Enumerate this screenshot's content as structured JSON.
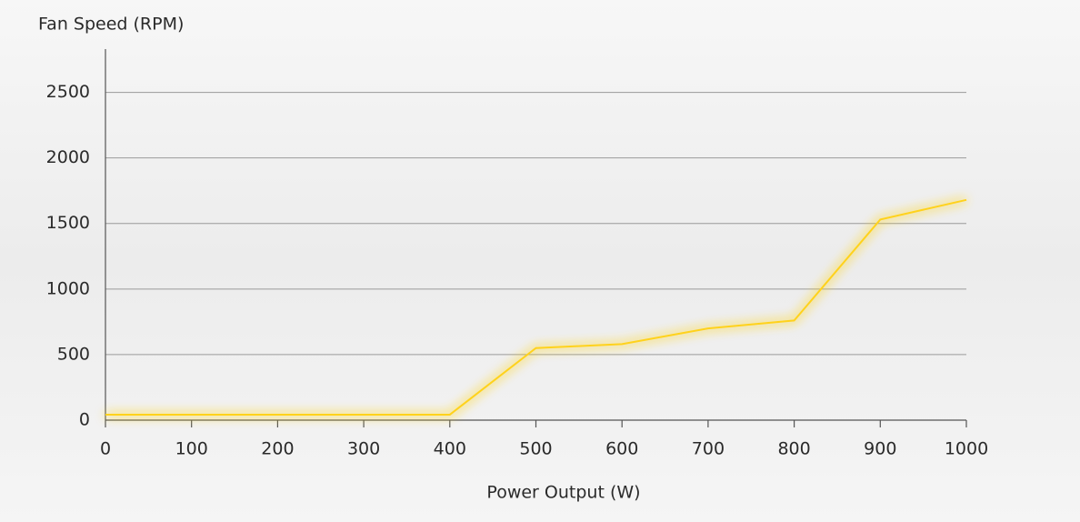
{
  "chart_data": {
    "type": "line",
    "x_label": "Power Output (W)",
    "y_label": "Fan Speed (RPM)",
    "x": [
      0,
      100,
      200,
      300,
      400,
      500,
      600,
      700,
      800,
      900,
      1000
    ],
    "series": [
      {
        "name": "Fan Speed",
        "color": "#ffd21f",
        "values": [
          42,
          42,
          42,
          42,
          42,
          550,
          580,
          700,
          760,
          1530,
          1680
        ]
      }
    ],
    "xlim": [
      0,
      1000
    ],
    "xticks": [
      0,
      100,
      200,
      300,
      400,
      500,
      600,
      700,
      800,
      900,
      1000
    ],
    "ylim": [
      0,
      2830
    ],
    "yticks": [
      0,
      500,
      1000,
      1500,
      2000,
      2500
    ],
    "grid": true
  }
}
